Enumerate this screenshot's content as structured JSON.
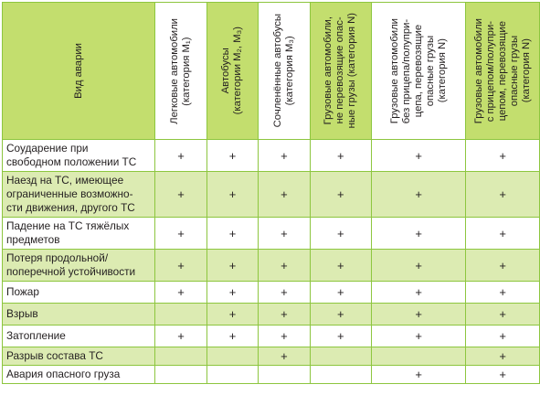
{
  "header": {
    "first": "Вид аварии",
    "cols": [
      "Легковые автомобили\n(категория M₁)",
      "Автобусы\n(категории M₂, M₃)",
      "Сочленённые автобусы\n(категория M₃)",
      "Грузовые автомобили,\nне перевозящие опас-\nные грузы (категория N)",
      "Грузовые автомобили\nбез прицепа/полупри-\nцепа, перевозящие\nопасные грузы\n(категория N)",
      "Грузовые автомобили\nс прицепом/полупри-\nцепом, перевозящие\nопасные грузы\n(категория N)"
    ]
  },
  "rows": [
    {
      "label": "Соударение при\nсвободном положении ТС",
      "marks": [
        "+",
        "+",
        "+",
        "+",
        "+",
        "+"
      ]
    },
    {
      "label": "Наезд на ТС, имеющее\nограниченные возможно-\nсти движения, другого ТС",
      "marks": [
        "+",
        "+",
        "+",
        "+",
        "+",
        "+"
      ]
    },
    {
      "label": "Падение на ТС тяжёлых\nпредметов",
      "marks": [
        "+",
        "+",
        "+",
        "+",
        "+",
        "+"
      ]
    },
    {
      "label": "Потеря продольной/\nпоперечной устойчивости",
      "marks": [
        "+",
        "+",
        "+",
        "+",
        "+",
        "+"
      ]
    },
    {
      "label": "Пожар",
      "marks": [
        "+",
        "+",
        "+",
        "+",
        "+",
        "+"
      ]
    },
    {
      "label": "Взрыв",
      "marks": [
        "",
        "+",
        "+",
        "+",
        "+",
        "+"
      ]
    },
    {
      "label": "Затопление",
      "marks": [
        "+",
        "+",
        "+",
        "+",
        "+",
        "+"
      ]
    },
    {
      "label": "Разрыв состава ТС",
      "marks": [
        "",
        "",
        "+",
        "",
        "",
        "+"
      ]
    },
    {
      "label": "Авария опасного груза",
      "marks": [
        "",
        "",
        "",
        "",
        "+",
        "+"
      ]
    }
  ]
}
